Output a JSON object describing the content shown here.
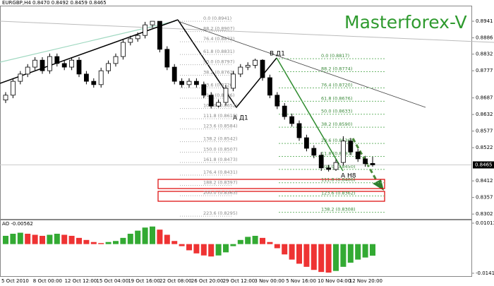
{
  "chart_data": [
    {
      "type": "candlestick",
      "symbol_label": "EURGBP,H4 0.8470 0.8492 0.8459 0.8465",
      "watermark": "Masterforex-V",
      "annotations": [
        "B Д1",
        "A Д1",
        "A H8"
      ],
      "open": [
        0.868,
        0.8696,
        0.8742,
        0.8766,
        0.8789,
        0.8812,
        0.8777,
        0.8824,
        0.8801,
        0.8789,
        0.8812,
        0.8766,
        0.8742,
        0.8731,
        0.8777,
        0.8801,
        0.8824,
        0.8871,
        0.8883,
        0.8894,
        0.8929,
        0.8941,
        0.8848,
        0.8789,
        0.8742,
        0.8731,
        0.8742,
        0.8731,
        0.8696,
        0.866,
        0.8672,
        0.8719,
        0.8766,
        0.8789,
        0.8795,
        0.8812,
        0.8754,
        0.8696,
        0.866,
        0.8625,
        0.8602,
        0.8555,
        0.852,
        0.8497,
        0.8455,
        0.845,
        0.8473,
        0.8544,
        0.8508,
        0.8485,
        0.847
      ],
      "high": [
        0.8706,
        0.8752,
        0.8776,
        0.8799,
        0.8822,
        0.8822,
        0.8834,
        0.8834,
        0.8811,
        0.8822,
        0.8822,
        0.8776,
        0.8752,
        0.8787,
        0.8811,
        0.8834,
        0.8881,
        0.8893,
        0.8904,
        0.8939,
        0.8941,
        0.8941,
        0.8858,
        0.8799,
        0.8752,
        0.8752,
        0.8752,
        0.8741,
        0.8706,
        0.8682,
        0.8729,
        0.8776,
        0.8799,
        0.8805,
        0.8817,
        0.8815,
        0.8764,
        0.8706,
        0.867,
        0.8635,
        0.8612,
        0.8565,
        0.853,
        0.8507,
        0.8465,
        0.8483,
        0.856,
        0.8554,
        0.8518,
        0.8495,
        0.8492
      ],
      "low": [
        0.867,
        0.8686,
        0.8732,
        0.8756,
        0.8779,
        0.8767,
        0.8767,
        0.8791,
        0.8779,
        0.8779,
        0.8756,
        0.8732,
        0.8721,
        0.8721,
        0.8767,
        0.8791,
        0.8814,
        0.8861,
        0.8873,
        0.8884,
        0.8919,
        0.8838,
        0.8779,
        0.8732,
        0.8721,
        0.8721,
        0.8721,
        0.8686,
        0.8652,
        0.8655,
        0.8662,
        0.8709,
        0.8756,
        0.8779,
        0.8785,
        0.8744,
        0.8686,
        0.865,
        0.8615,
        0.8592,
        0.8545,
        0.851,
        0.8487,
        0.8445,
        0.8443,
        0.8445,
        0.8463,
        0.8498,
        0.8475,
        0.8459,
        0.8459
      ],
      "close": [
        0.8696,
        0.8742,
        0.8766,
        0.8789,
        0.8812,
        0.8777,
        0.8824,
        0.8801,
        0.8789,
        0.8812,
        0.8766,
        0.8742,
        0.8731,
        0.8777,
        0.8801,
        0.8824,
        0.8871,
        0.8883,
        0.8894,
        0.8929,
        0.8941,
        0.8848,
        0.8789,
        0.8742,
        0.8731,
        0.8742,
        0.8731,
        0.8696,
        0.866,
        0.8672,
        0.8719,
        0.8766,
        0.8789,
        0.8795,
        0.8812,
        0.8754,
        0.8696,
        0.866,
        0.8625,
        0.8602,
        0.8555,
        0.852,
        0.8497,
        0.8455,
        0.845,
        0.8473,
        0.8544,
        0.8508,
        0.8485,
        0.8469,
        0.8465
      ],
      "up_color": "#ffffff",
      "down_color": "#000000",
      "ylim": [
        0.8286,
        0.8988
      ],
      "yticks": [
        0.8941,
        0.8886,
        0.8832,
        0.8777,
        0.8687,
        0.8632,
        0.8577,
        0.8522,
        0.8412,
        0.8357,
        0.8302
      ],
      "current_price": 0.8465,
      "fib_left": [
        {
          "text": "0.0 (0.8941)",
          "value": 0.8941
        },
        {
          "text": "88.2 (0.8907)",
          "value": 0.8907
        },
        {
          "text": "76.4 (0.8873)",
          "value": 0.8873
        },
        {
          "text": "61.8 (0.8831)",
          "value": 0.8831
        },
        {
          "text": "50.0 (0.8797)",
          "value": 0.8797
        },
        {
          "text": "38.2 (0.8762)",
          "value": 0.8762
        },
        {
          "text": "23.6 (0.8720)",
          "value": 0.872
        },
        {
          "text": "11.8 (0.8686)",
          "value": 0.8686
        },
        {
          "text": "100.0 (0.8652)",
          "value": 0.8652
        },
        {
          "text": "111.8 (0.8618)",
          "value": 0.8618
        },
        {
          "text": "123.6 (0.8584)",
          "value": 0.8584
        },
        {
          "text": "138.2 (0.8542)",
          "value": 0.8542
        },
        {
          "text": "150.0 (0.8507)",
          "value": 0.8507
        },
        {
          "text": "161.8 (0.8473)",
          "value": 0.8473
        },
        {
          "text": "176.4 (0.8431)",
          "value": 0.8431
        },
        {
          "text": "188.2 (0.8397)",
          "value": 0.8397
        },
        {
          "text": "200.0 (0.8363)",
          "value": 0.8363
        },
        {
          "text": "223.6 (0.8295)",
          "value": 0.8295
        }
      ],
      "fib_right": [
        {
          "text": "0.0 (0.8817)",
          "value": 0.8817
        },
        {
          "text": "88.2 (0.8774)",
          "value": 0.8774
        },
        {
          "text": "76.4 (0.8720)",
          "value": 0.872
        },
        {
          "text": "61.8 (0.8676)",
          "value": 0.8676
        },
        {
          "text": "50.0 (0.8633)",
          "value": 0.8633
        },
        {
          "text": "38.2 (0.8590)",
          "value": 0.859
        },
        {
          "text": "23.6 (0.8536)",
          "value": 0.8536
        },
        {
          "text": "11.8 (0.8493)",
          "value": 0.8493
        },
        {
          "text": "100.0 (0.8450)",
          "value": 0.845
        },
        {
          "text": "111.8 (0.8406)",
          "value": 0.8406
        },
        {
          "text": "123.6 (0.8362)",
          "value": 0.8362
        },
        {
          "text": "138.2 (0.8308)",
          "value": 0.8308
        }
      ],
      "x_labels": [
        "5 Oct 2010",
        "8 Oct 00:00",
        "12 Oct 12:00",
        "15 Oct 04:00",
        "19 Oct 16:00",
        "22 Oct 08:00",
        "26 Oct 20:00",
        "29 Oct 12:00",
        "3 Nov 00:00",
        "5 Nov 16:00",
        "10 Nov 04:00",
        "12 Nov 20:00"
      ]
    },
    {
      "type": "bar",
      "title": "AO -0.00562",
      "values": [
        0.004,
        0.005,
        0.0055,
        0.005,
        0.0045,
        0.004,
        0.0045,
        0.005,
        0.0045,
        0.004,
        0.003,
        0.002,
        0.001,
        0.0005,
        0.001,
        0.0015,
        0.003,
        0.005,
        0.0065,
        0.008,
        0.0085,
        0.007,
        0.0045,
        0.0015,
        -0.001,
        -0.003,
        -0.0045,
        -0.0055,
        -0.006,
        -0.0055,
        -0.004,
        -0.001,
        0.002,
        0.0035,
        0.004,
        0.003,
        0.001,
        -0.002,
        -0.005,
        -0.0075,
        -0.0095,
        -0.011,
        -0.0125,
        -0.0135,
        -0.0138,
        -0.013,
        -0.011,
        -0.009,
        -0.0075,
        -0.0065,
        -0.00562
      ],
      "up_color": "#33aa33",
      "down_color": "#ee3333",
      "ylim": [
        -0.0155,
        0.0115
      ],
      "yticks": [
        0.01013,
        -0.01411
      ]
    }
  ]
}
